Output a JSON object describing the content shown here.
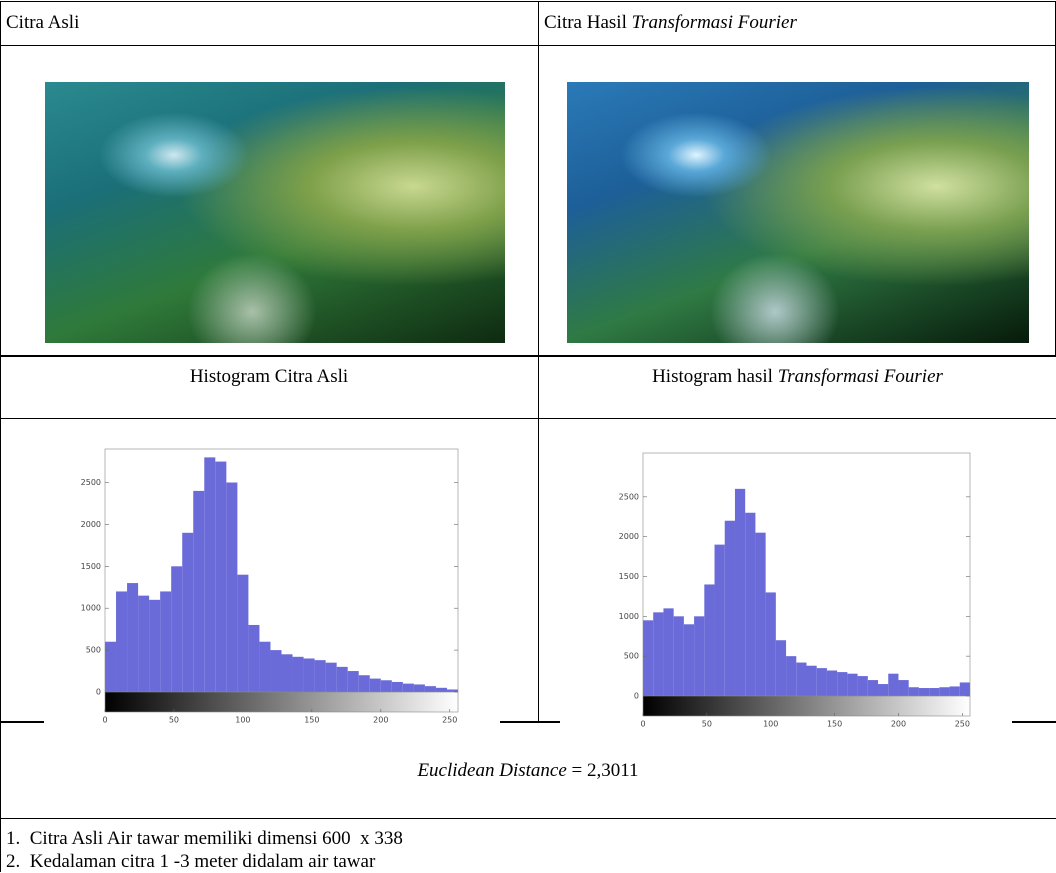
{
  "table": {
    "header": [
      {
        "text": "Citra Asli"
      },
      {
        "text": "Citra Hasil ",
        "emphasis": "Transformasi Fourier"
      }
    ],
    "histogram_header": [
      {
        "text": "Histogram Citra Asli"
      },
      {
        "text": "Histogram hasil ",
        "emphasis": "Transformasi Fourier"
      }
    ],
    "histograms": [
      {
        "type": "histogram",
        "color": "#6a6ad8",
        "bins": [
          0,
          8,
          16,
          24,
          32,
          40,
          48,
          56,
          64,
          72,
          80,
          88,
          96,
          104,
          112,
          120,
          128,
          136,
          144,
          152,
          160,
          168,
          176,
          184,
          192,
          200,
          208,
          216,
          224,
          232,
          240,
          248,
          256
        ],
        "values": [
          600,
          1200,
          1300,
          1150,
          1100,
          1200,
          1500,
          1900,
          2400,
          2800,
          2750,
          2500,
          1400,
          800,
          600,
          500,
          450,
          420,
          400,
          380,
          350,
          300,
          250,
          200,
          160,
          140,
          120,
          100,
          90,
          70,
          50,
          30
        ],
        "xlim": [
          0,
          256
        ],
        "ylim": [
          0,
          2900
        ],
        "xticks": [
          0,
          50,
          100,
          150,
          200,
          250
        ],
        "yticks": [
          0,
          500,
          1000,
          1500,
          2000,
          2500
        ]
      },
      {
        "type": "histogram",
        "color": "#6a6ad8",
        "bins": [
          0,
          8,
          16,
          24,
          32,
          40,
          48,
          56,
          64,
          72,
          80,
          88,
          96,
          104,
          112,
          120,
          128,
          136,
          144,
          152,
          160,
          168,
          176,
          184,
          192,
          200,
          208,
          216,
          224,
          232,
          240,
          248,
          256
        ],
        "values": [
          950,
          1050,
          1100,
          1000,
          900,
          1000,
          1400,
          1900,
          2200,
          2600,
          2300,
          2050,
          1300,
          700,
          500,
          420,
          380,
          350,
          320,
          300,
          280,
          250,
          200,
          150,
          280,
          200,
          110,
          100,
          100,
          110,
          120,
          170
        ],
        "xlim": [
          0,
          256
        ],
        "ylim": [
          0,
          3050
        ],
        "xticks": [
          0,
          50,
          100,
          150,
          200,
          250
        ],
        "yticks": [
          0,
          500,
          1000,
          1500,
          2000,
          2500
        ]
      }
    ],
    "distance": {
      "emphasis": "Euclidean Distance",
      "text": " = 2,3011"
    },
    "notes": [
      {
        "number": "1.",
        "text": "Citra Asli Air tawar memiliki dimensi 600  x 338"
      },
      {
        "number": "2.",
        "text": "Kedalaman citra 1 -3 meter didalam air tawar"
      }
    ]
  }
}
